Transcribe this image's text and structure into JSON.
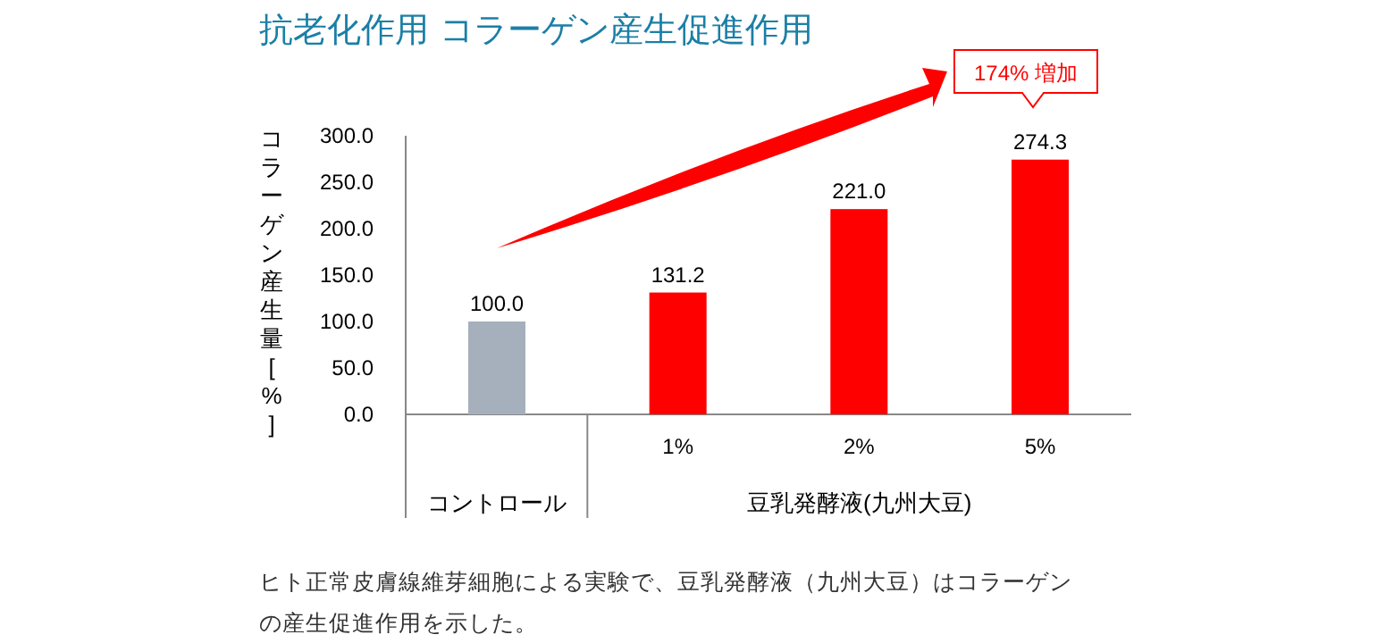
{
  "chart_data": {
    "type": "bar",
    "title": "抗老化作用 コラーゲン産生促進作用",
    "ylabel": "コラーゲン産生量[%]",
    "categories": [
      null,
      "1%",
      "2%",
      "5%"
    ],
    "values": [
      100.0,
      131.2,
      221.0,
      274.3
    ],
    "colors": [
      "#a5b0bc",
      "#ff0000",
      "#ff0000",
      "#ff0000"
    ],
    "ylim": [
      0,
      300
    ],
    "yticks": [
      {
        "value": 0,
        "label": "0.0"
      },
      {
        "value": 50,
        "label": "50.0"
      },
      {
        "value": 100,
        "label": "100.0"
      },
      {
        "value": 150,
        "label": "150.0"
      },
      {
        "value": 200,
        "label": "200.0"
      },
      {
        "value": 250,
        "label": "250.0"
      },
      {
        "value": 300,
        "label": "300.0"
      }
    ],
    "value_labels": [
      "100.0",
      "131.2",
      "221.0",
      "274.3"
    ],
    "annotations": [
      "174% 増加",
      "コントロール",
      "豆乳発酵液(九州大豆)",
      "ヒト正常皮膚線維芽細胞による実験で、豆乳発酵液（九州大豆）はコラーゲンの産生促進作用を示した。"
    ]
  }
}
